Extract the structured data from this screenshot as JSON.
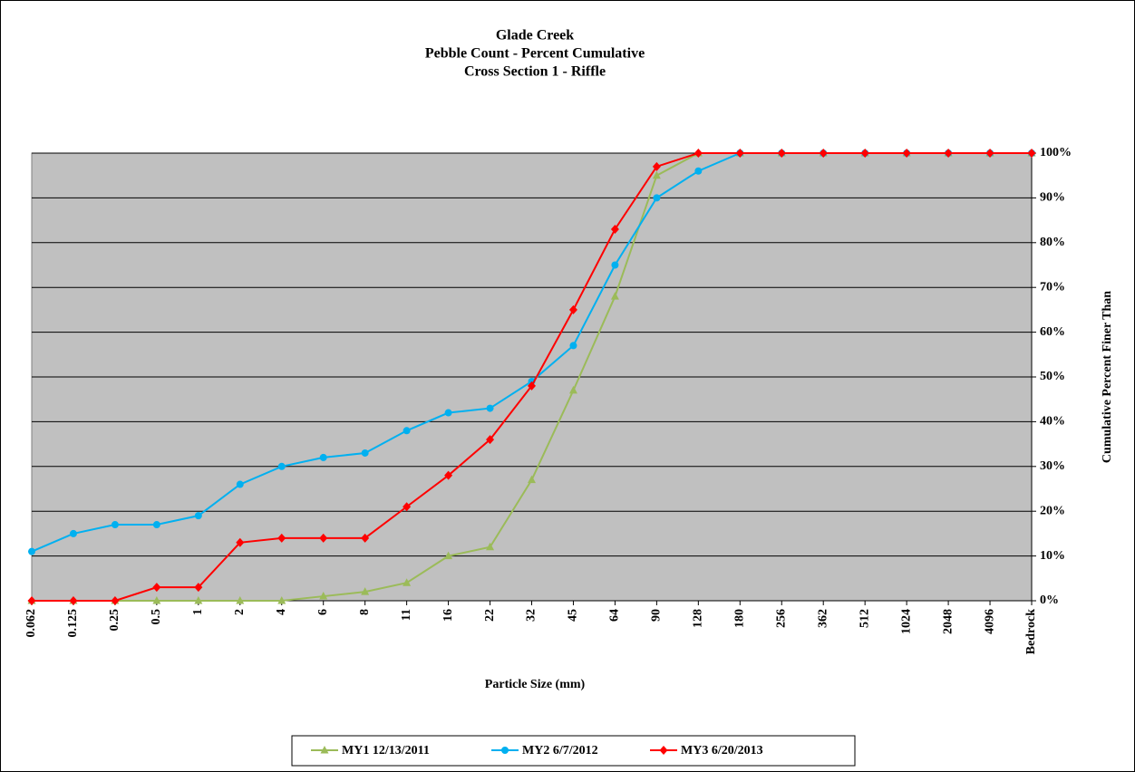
{
  "chart_data": {
    "type": "line",
    "title": [
      "Glade Creek",
      "Pebble Count - Percent Cumulative",
      "Cross Section 1 - Riffle"
    ],
    "x_label": "Particle Size (mm)",
    "y_label": "Cumulative Percent Finer Than",
    "categories": [
      "0.062",
      "0.125",
      "0.25",
      "0.5",
      "1",
      "2",
      "4",
      "6",
      "8",
      "11",
      "16",
      "22",
      "32",
      "45",
      "64",
      "90",
      "128",
      "180",
      "256",
      "362",
      "512",
      "1024",
      "2048",
      "4096",
      "Bedrock"
    ],
    "series": [
      {
        "name": "MY1 12/13/2011",
        "color": "#9bbb59",
        "marker": "triangle",
        "values": [
          0,
          0,
          0,
          0,
          0,
          0,
          0,
          1,
          2,
          4,
          10,
          12,
          27,
          47,
          68,
          95,
          100,
          100,
          100,
          100,
          100,
          100,
          100,
          100,
          100
        ]
      },
      {
        "name": "MY2 6/7/2012",
        "color": "#00b0f0",
        "marker": "circle",
        "values": [
          11,
          15,
          17,
          17,
          19,
          26,
          30,
          32,
          33,
          38,
          42,
          43,
          49,
          57,
          75,
          90,
          96,
          100,
          100,
          100,
          100,
          100,
          100,
          100,
          100
        ]
      },
      {
        "name": "MY3 6/20/2013",
        "color": "#ff0000",
        "marker": "diamond",
        "values": [
          0,
          0,
          0,
          3,
          3,
          13,
          14,
          14,
          14,
          21,
          28,
          36,
          48,
          65,
          83,
          97,
          100,
          100,
          100,
          100,
          100,
          100,
          100,
          100,
          100
        ]
      }
    ],
    "ylim": [
      0,
      100
    ],
    "yticks": [
      {
        "value": 0,
        "label": "0%"
      },
      {
        "value": 10,
        "label": "10%"
      },
      {
        "value": 20,
        "label": "20%"
      },
      {
        "value": 30,
        "label": "30%"
      },
      {
        "value": 40,
        "label": "40%"
      },
      {
        "value": 50,
        "label": "50%"
      },
      {
        "value": 60,
        "label": "60%"
      },
      {
        "value": 70,
        "label": "70%"
      },
      {
        "value": 80,
        "label": "80%"
      },
      {
        "value": 90,
        "label": "90%"
      },
      {
        "value": 100,
        "label": "100%"
      }
    ],
    "y_axis_side": "right",
    "grid": true,
    "plot_background": "#c0c0c0",
    "legend": "bottom"
  }
}
